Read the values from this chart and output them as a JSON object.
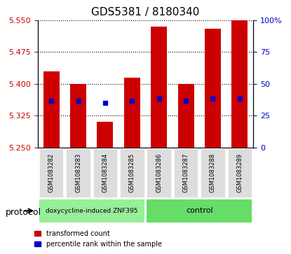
{
  "title": "GDS5381 / 8180340",
  "samples": [
    "GSM1083282",
    "GSM1083283",
    "GSM1083284",
    "GSM1083285",
    "GSM1083286",
    "GSM1083287",
    "GSM1083288",
    "GSM1083289"
  ],
  "bar_tops": [
    5.43,
    5.4,
    5.31,
    5.415,
    5.535,
    5.4,
    5.53,
    5.55
  ],
  "bar_bottom": 5.25,
  "percentile_values": [
    5.36,
    5.36,
    5.355,
    5.36,
    5.365,
    5.36,
    5.365,
    5.365
  ],
  "ylim_left": [
    5.25,
    5.55
  ],
  "ylim_right": [
    0,
    100
  ],
  "yticks_left": [
    5.25,
    5.325,
    5.4,
    5.475,
    5.55
  ],
  "yticks_right": [
    0,
    25,
    50,
    75,
    100
  ],
  "ytick_labels_right": [
    "0",
    "25",
    "50",
    "75",
    "100%"
  ],
  "bar_color": "#cc0000",
  "percentile_color": "#0000cc",
  "group1_label": "doxycycline-induced ZNF395",
  "group2_label": "control",
  "group1_color": "#99ee99",
  "group2_color": "#66dd66",
  "group1_indices": [
    0,
    1,
    2,
    3
  ],
  "group2_indices": [
    4,
    5,
    6,
    7
  ],
  "protocol_label": "protocol",
  "legend_red_label": "transformed count",
  "legend_blue_label": "percentile rank within the sample",
  "bar_width": 0.6,
  "grid_color": "#000000",
  "background_plot": "#ffffff",
  "background_label": "#dddddd",
  "tick_color_left": "#cc0000",
  "tick_color_right": "#0000cc"
}
